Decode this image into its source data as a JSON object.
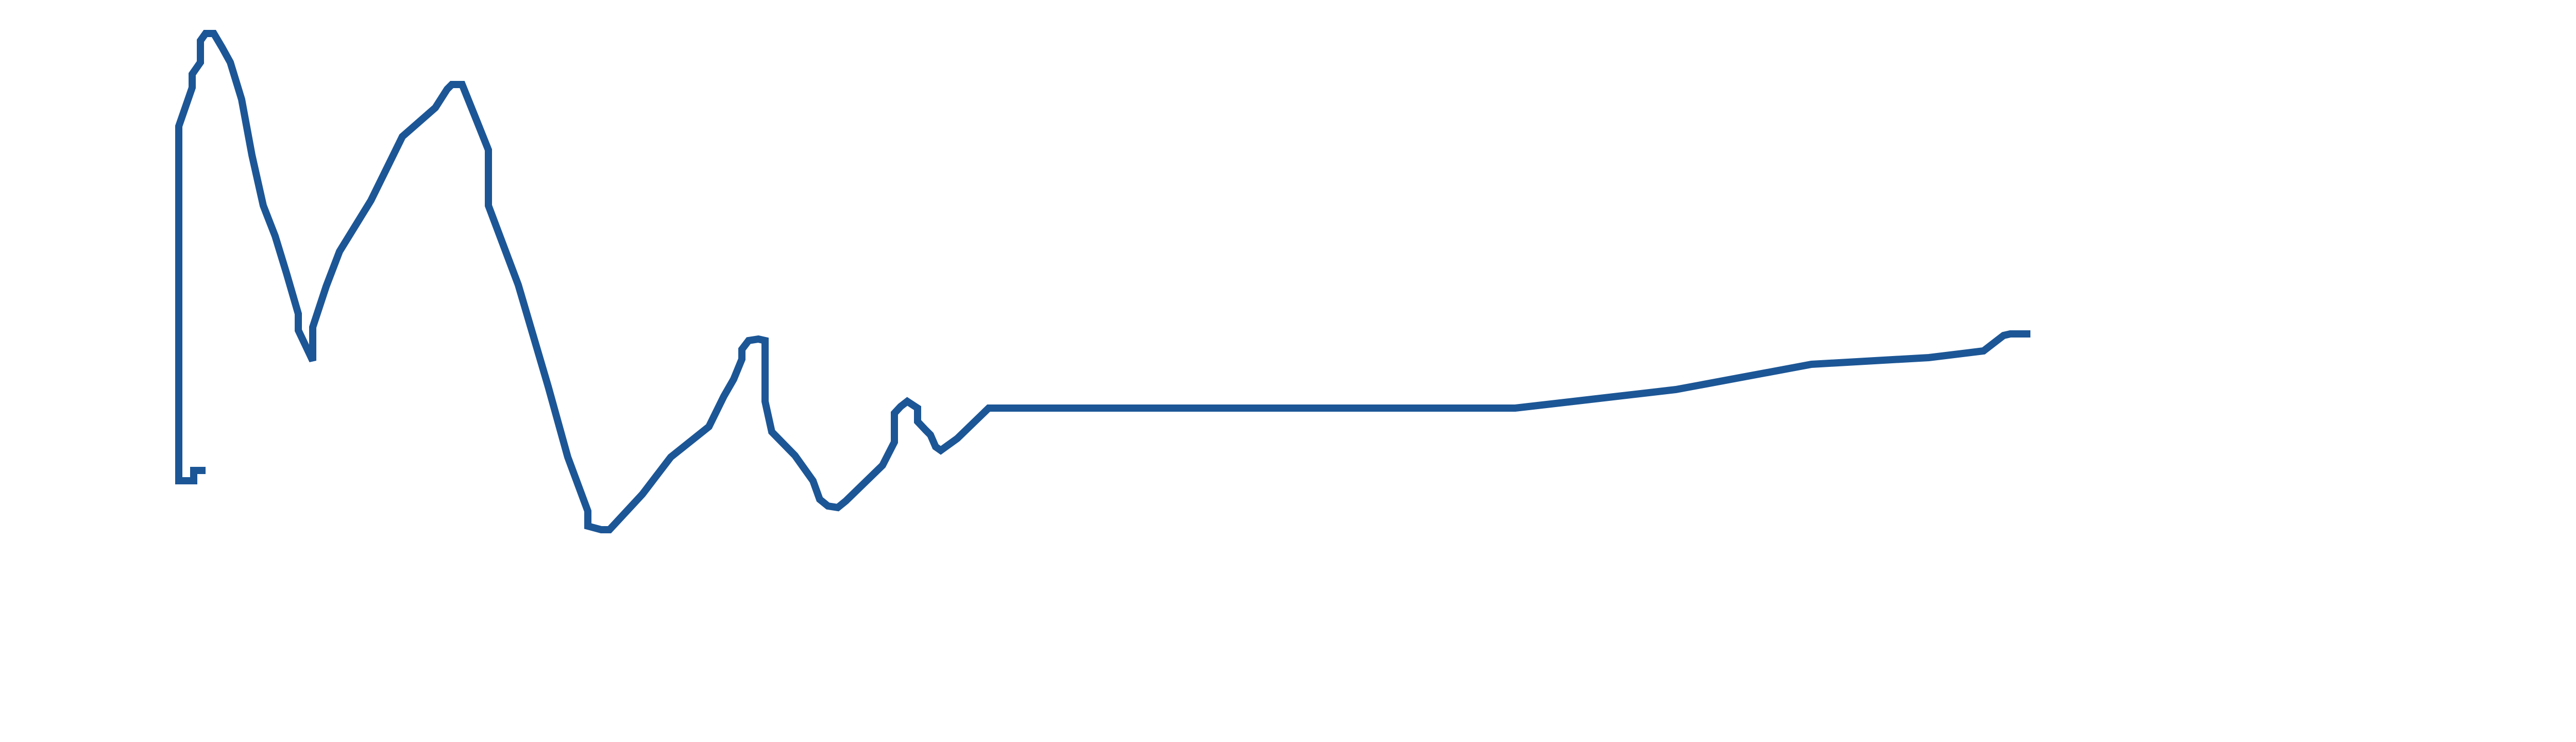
{
  "chart_data": {
    "type": "line",
    "x": [
      392,
      376,
      376,
      347,
      347,
      373,
      373,
      389,
      389,
      399,
      415,
      431,
      447,
      469,
      489,
      511,
      534,
      556,
      579,
      579,
      598,
      607,
      607,
      633,
      659,
      720,
      781,
      845,
      868,
      877,
      897,
      926,
      948,
      948,
      1006,
      1064,
      1102,
      1141,
      1141,
      1167,
      1183,
      1247,
      1302,
      1376,
      1405,
      1424,
      1440,
      1440,
      1453,
      1472,
      1485,
      1485,
      1498,
      1543,
      1578,
      1591,
      1607,
      1626,
      1642,
      1713,
      1736,
      1736,
      1748,
      1761,
      1781,
      1781,
      1797,
      1806,
      1816,
      1826,
      1858,
      1919,
      2941,
      3253,
      3516,
      3744,
      3850,
      3889,
      3902,
      3934
    ],
    "series": [
      {
        "color": "#1c5696",
        "values": [
          913,
          913,
          933,
          933,
          245,
          170,
          144,
          121,
          79,
          65,
          65,
          92,
          121,
          193,
          301,
          399,
          458,
          530,
          609,
          641,
          681,
          700,
          635,
          556,
          488,
          389,
          265,
          209,
          173,
          164,
          164,
          236,
          291,
          399,
          553,
          750,
          887,
          992,
          1021,
          1028,
          1028,
          959,
          887,
          828,
          769,
          736,
          697,
          678,
          661,
          658,
          661,
          779,
          838,
          884,
          933,
          969,
          982,
          985,
          972,
          903,
          858,
          802,
          789,
          779,
          792,
          818,
          835,
          844,
          867,
          874,
          851,
          792,
          792,
          756,
          707,
          694,
          681,
          651,
          648,
          648
        ]
      }
    ],
    "xlim": [
      0,
      5040
    ],
    "ylim": [
      1440,
      0
    ]
  }
}
